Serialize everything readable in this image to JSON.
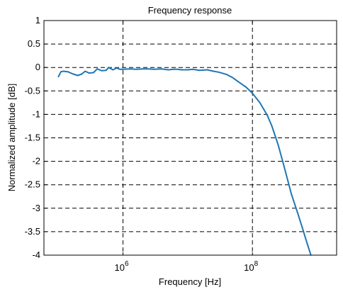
{
  "chart_data": {
    "type": "line",
    "title": "Frequency response",
    "xlabel": "Frequency [Hz]",
    "ylabel": "Normalized amplitude [dB]",
    "x_scale": "log",
    "xlim": [
      60000,
      2000000000
    ],
    "ylim": [
      -4,
      1
    ],
    "grid": true,
    "x_ticks": [
      {
        "value": 1000000,
        "base": "10",
        "exp": "6"
      },
      {
        "value": 100000000,
        "base": "10",
        "exp": "8"
      }
    ],
    "y_ticks": [
      {
        "value": 1,
        "label": "1"
      },
      {
        "value": 0.5,
        "label": "0.5"
      },
      {
        "value": 0,
        "label": "0"
      },
      {
        "value": -0.5,
        "label": "-0.5"
      },
      {
        "value": -1,
        "label": "-1"
      },
      {
        "value": -1.5,
        "label": "-1.5"
      },
      {
        "value": -2,
        "label": "-2"
      },
      {
        "value": -2.5,
        "label": "-2.5"
      },
      {
        "value": -3,
        "label": "-3"
      },
      {
        "value": -3.5,
        "label": "-3.5"
      },
      {
        "value": -4,
        "label": "-4"
      }
    ],
    "series": [
      {
        "color": "#1f77b4",
        "x": [
          100000,
          110000,
          120000,
          140000,
          170000,
          200000,
          230000,
          260000,
          300000,
          350000,
          400000,
          470000,
          550000,
          600000,
          700000,
          800000,
          900000,
          1000000,
          1300000,
          1600000,
          2000000,
          2500000,
          3000000,
          4000000,
          5000000,
          6000000,
          7000000,
          8000000,
          10000000,
          12000000,
          15000000,
          20000000,
          25000000,
          30000000,
          40000000,
          50000000,
          60000000,
          80000000,
          100000000,
          130000000,
          170000000,
          200000000,
          250000000,
          300000000,
          400000000,
          500000000,
          600000000,
          700000000,
          800000000
        ],
        "y": [
          -0.2,
          -0.09,
          -0.08,
          -0.09,
          -0.14,
          -0.17,
          -0.14,
          -0.08,
          -0.12,
          -0.11,
          -0.03,
          -0.07,
          -0.06,
          0.0,
          -0.05,
          -0.01,
          -0.04,
          -0.04,
          -0.03,
          -0.04,
          -0.03,
          -0.03,
          -0.04,
          -0.03,
          -0.05,
          -0.04,
          -0.04,
          -0.05,
          -0.05,
          -0.04,
          -0.06,
          -0.05,
          -0.08,
          -0.1,
          -0.15,
          -0.22,
          -0.3,
          -0.42,
          -0.55,
          -0.75,
          -1.02,
          -1.25,
          -1.65,
          -2.05,
          -2.7,
          -3.1,
          -3.45,
          -3.75,
          -4.0
        ]
      }
    ]
  }
}
